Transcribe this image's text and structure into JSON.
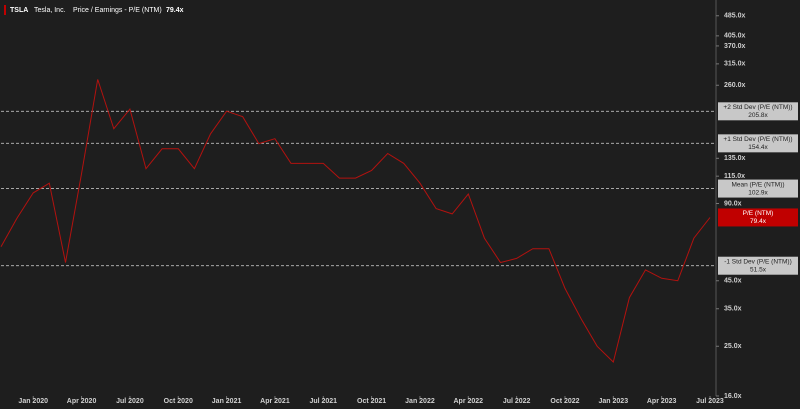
{
  "chart_data": {
    "type": "line",
    "ticker": "TSLA",
    "company": "Tesla, Inc.",
    "title": "Price / Earnings - P/E (NTM)",
    "log_scale": true,
    "x": [
      "2019-11",
      "2019-12",
      "2020-01",
      "2020-02",
      "2020-03",
      "2020-04",
      "2020-05",
      "2020-06",
      "2020-07",
      "2020-08",
      "2020-09",
      "2020-10",
      "2020-11",
      "2020-12",
      "2021-01",
      "2021-02",
      "2021-03",
      "2021-04",
      "2021-05",
      "2021-06",
      "2021-07",
      "2021-08",
      "2021-09",
      "2021-10",
      "2021-11",
      "2021-12",
      "2022-01",
      "2022-02",
      "2022-03",
      "2022-04",
      "2022-05",
      "2022-06",
      "2022-07",
      "2022-08",
      "2022-09",
      "2022-10",
      "2022-11",
      "2022-12",
      "2023-01",
      "2023-02",
      "2023-03",
      "2023-04",
      "2023-05",
      "2023-06",
      "2023-07"
    ],
    "series": [
      {
        "name": "P/E (NTM)",
        "color": "#b3120f",
        "values": [
          61,
          79,
          99,
          108,
          53,
          118,
          274,
          176,
          210,
          123,
          147,
          147,
          123,
          168,
          206,
          196,
          154,
          161,
          129,
          129,
          129,
          113,
          113,
          121,
          141,
          129,
          108,
          86,
          82,
          98,
          66,
          53,
          55,
          60,
          60,
          42,
          32,
          25,
          21.7,
          38.7,
          49.6,
          46,
          45,
          66,
          79.4
        ]
      }
    ],
    "xlim": [
      "2019-11",
      "2023-07"
    ],
    "xticks": [
      {
        "value": "2020-01",
        "label": "Jan 2020"
      },
      {
        "value": "2020-04",
        "label": "Apr 2020"
      },
      {
        "value": "2020-07",
        "label": "Jul 2020"
      },
      {
        "value": "2020-10",
        "label": "Oct 2020"
      },
      {
        "value": "2021-01",
        "label": "Jan 2021"
      },
      {
        "value": "2021-04",
        "label": "Apr 2021"
      },
      {
        "value": "2021-07",
        "label": "Jul 2021"
      },
      {
        "value": "2021-10",
        "label": "Oct 2021"
      },
      {
        "value": "2022-01",
        "label": "Jan 2022"
      },
      {
        "value": "2022-04",
        "label": "Apr 2022"
      },
      {
        "value": "2022-07",
        "label": "Jul 2022"
      },
      {
        "value": "2022-10",
        "label": "Oct 2022"
      },
      {
        "value": "2023-01",
        "label": "Jan 2023"
      },
      {
        "value": "2023-04",
        "label": "Apr 2023"
      },
      {
        "value": "2023-07",
        "label": "Jul 2023"
      }
    ],
    "ylim": [
      16,
      520
    ],
    "yticks": [
      {
        "value": 485,
        "label": "485.0x"
      },
      {
        "value": 405,
        "label": "405.0x"
      },
      {
        "value": 370,
        "label": "370.0x"
      },
      {
        "value": 315,
        "label": "315.0x"
      },
      {
        "value": 260,
        "label": "260.0x"
      },
      {
        "value": 135,
        "label": "135.0x"
      },
      {
        "value": 115,
        "label": "115.0x"
      },
      {
        "value": 90,
        "label": "90.0x"
      },
      {
        "value": 45,
        "label": "45.0x"
      },
      {
        "value": 35,
        "label": "35.0x"
      },
      {
        "value": 25,
        "label": "25.0x"
      },
      {
        "value": 16,
        "label": "16.0x"
      }
    ],
    "reference_lines": [
      {
        "name": "+2 Std Dev (P/E (NTM))",
        "value": 205.8,
        "label": "205.8x"
      },
      {
        "name": "+1 Std Dev (P/E (NTM))",
        "value": 154.4,
        "label": "154.4x"
      },
      {
        "name": "Mean (P/E (NTM))",
        "value": 102.9,
        "label": "102.9x"
      },
      {
        "name": "-1 Std Dev (P/E (NTM))",
        "value": 51.5,
        "label": "51.5x"
      }
    ],
    "current": {
      "name": "P/E (NTM)",
      "value": 79.4,
      "label": "79.4x"
    }
  }
}
